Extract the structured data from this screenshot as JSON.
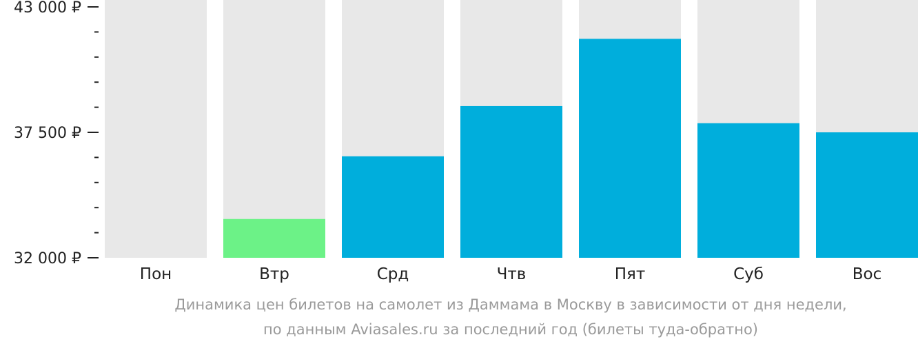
{
  "chart_data": {
    "type": "bar",
    "categories": [
      "Пон",
      "Втр",
      "Срд",
      "Чтв",
      "Пят",
      "Суб",
      "Вос"
    ],
    "values": [
      null,
      33700,
      36450,
      38650,
      41600,
      37900,
      37500
    ],
    "highlight_index": 1,
    "ylim": [
      32000,
      43000
    ],
    "ytick_labels": [
      "43 000 ₽",
      "37 500 ₽",
      "32 000 ₽"
    ],
    "ytick_values": [
      43000,
      37500,
      32000
    ],
    "minor_tick_step": 1100,
    "colors": {
      "bar": "#00AEDC",
      "highlight": "#6CF287",
      "background_bar": "#E8E8E8"
    }
  },
  "caption": {
    "line1": "Динамика цен билетов на самолет из Даммама в Москву в зависимости от дня недели,",
    "line2": "по данным Aviasales.ru за последний год (билеты туда-обратно)"
  }
}
